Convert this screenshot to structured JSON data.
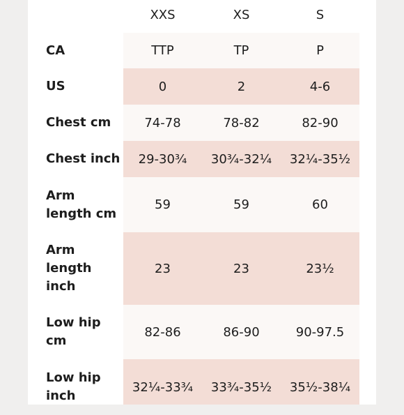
{
  "columns": [
    "XXS",
    "XS",
    "S"
  ],
  "rows": [
    {
      "label": "CA",
      "values": [
        "TTP",
        "TP",
        "P"
      ]
    },
    {
      "label": "US",
      "values": [
        "0",
        "2",
        "4-6"
      ]
    },
    {
      "label": "Chest cm",
      "values": [
        "74-78",
        "78-82",
        "82-90"
      ]
    },
    {
      "label": "Chest inch",
      "values": [
        "29-30¾",
        "30¾-32¼",
        "32¼-35½"
      ]
    },
    {
      "label": "Arm length cm",
      "values": [
        "59",
        "59",
        "60"
      ]
    },
    {
      "label": "Arm length inch",
      "values": [
        "23",
        "23",
        "23½"
      ]
    },
    {
      "label": "Low hip cm",
      "values": [
        "82-86",
        "86-90",
        "90-97.5"
      ]
    },
    {
      "label": "Low hip inch",
      "values": [
        "32¼-33¾",
        "33¾-35½",
        "35½-38¼"
      ]
    }
  ],
  "colors": {
    "band_light": "#fbf8f6",
    "band_pink": "#f3ddd6"
  }
}
